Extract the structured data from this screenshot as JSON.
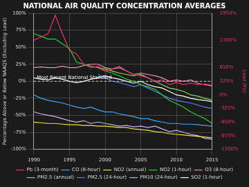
{
  "chart_data": {
    "type": "line",
    "title": "NATIONAL AIR QUALITY CONCENTRATION AVERAGES",
    "y_label": "Percentage Above or Below NAAQS (Excluding Lead)",
    "y2_label": "Lead (Pb)",
    "x": [
      1990,
      1991,
      1992,
      1993,
      1994,
      1995,
      1996,
      1997,
      1998,
      1999,
      2000,
      2001,
      2002,
      2003,
      2004,
      2005,
      2006,
      2007,
      2008,
      2009,
      2010,
      2011,
      2012,
      2013,
      2014,
      2015
    ],
    "xlim": [
      1990,
      2015
    ],
    "xticks": [
      1990,
      1995,
      2000,
      2005,
      2010,
      2015
    ],
    "ylim": [
      -100,
      100
    ],
    "yticks": [
      {
        "value": -100,
        "label": "-100%"
      },
      {
        "value": -75,
        "label": "-75%"
      },
      {
        "value": -50,
        "label": "-50%"
      },
      {
        "value": -25,
        "label": "-25%"
      },
      {
        "value": 0,
        "label": "0%"
      },
      {
        "value": 25,
        "label": "25%"
      },
      {
        "value": 50,
        "label": "50%"
      },
      {
        "value": 75,
        "label": "75%"
      },
      {
        "value": 100,
        "label": "100%"
      }
    ],
    "y2lim": [
      -1300,
      1950
    ],
    "y2ticks": [
      {
        "value": -1300,
        "label": "-1300%"
      },
      {
        "value": -975,
        "label": "-975%"
      },
      {
        "value": -650,
        "label": "-650%"
      },
      {
        "value": -325,
        "label": "-325%"
      },
      {
        "value": 0,
        "label": "0%"
      },
      {
        "value": 325,
        "label": "325%"
      },
      {
        "value": 650,
        "label": "650%"
      },
      {
        "value": 1300,
        "label": "1300%"
      },
      {
        "value": 1950,
        "label": "1950%"
      }
    ],
    "grid": true,
    "legend": "bottom",
    "annotations": [
      {
        "text": "Most Recent National Standard",
        "y": 0
      }
    ],
    "series": [
      {
        "name": "Pb (3-month)",
        "color": "#e8336e",
        "axis": "y2",
        "values": [
          1300,
          1381,
          1463,
          1901,
          1463,
          1056,
          975,
          731,
          650,
          683,
          569,
          618,
          683,
          569,
          488,
          455,
          406,
          325,
          358,
          244,
          293,
          244,
          276,
          244,
          260,
          228
        ]
      },
      {
        "name": "CO (8-hour)",
        "color": "#3fa9f5",
        "values": [
          -20,
          -25,
          -28,
          -30,
          -32,
          -35,
          -38,
          -40,
          -38,
          -42,
          -45,
          -45,
          -48,
          -50,
          -52,
          -55,
          -55,
          -58,
          -60,
          -62,
          -62,
          -63,
          -63,
          -64,
          -65,
          -66
        ]
      },
      {
        "name": "NO2 (annual)",
        "color": "#f0e442",
        "values": [
          -60,
          -61,
          -62,
          -62,
          -63,
          -64,
          -64,
          -65,
          -65,
          -66,
          -66,
          -67,
          -68,
          -68,
          -70,
          -71,
          -72,
          -74,
          -75,
          -77,
          -78,
          -79,
          -80,
          -81,
          -82,
          -83
        ]
      },
      {
        "name": "NO2 (1-hour)",
        "color": "#33cc33",
        "values": [
          70,
          66,
          62,
          62,
          55,
          48,
          28,
          25,
          22,
          20,
          15,
          12,
          8,
          3,
          0,
          -5,
          -8,
          -12,
          -20,
          -28,
          -33,
          -38,
          -45,
          -50,
          -55,
          -62
        ]
      },
      {
        "name": "O3 (8-hour)",
        "color": "#f08cb0",
        "values": [
          20,
          21,
          20,
          20,
          22,
          20,
          20,
          23,
          25,
          25,
          20,
          18,
          20,
          15,
          10,
          12,
          10,
          8,
          5,
          0,
          2,
          0,
          2,
          -3,
          -5,
          -7
        ]
      },
      {
        "name": "PM2.5 (annual)",
        "color": "#88dd55",
        "values": [
          null,
          null,
          null,
          null,
          null,
          null,
          null,
          null,
          null,
          20,
          18,
          15,
          12,
          10,
          8,
          10,
          5,
          0,
          -5,
          -10,
          -12,
          -15,
          -20,
          -22,
          -25,
          -28
        ]
      },
      {
        "name": "PM2.5 (24-hour)",
        "color": "#5b7cfa",
        "values": [
          null,
          null,
          null,
          null,
          null,
          null,
          null,
          null,
          null,
          10,
          5,
          0,
          -2,
          -5,
          -8,
          -5,
          -10,
          -15,
          -20,
          -25,
          -28,
          -30,
          -32,
          -35,
          -38,
          -40
        ]
      },
      {
        "name": "PM10 (24-hour)",
        "color": "#c9b3f0",
        "values": [
          -45,
          -48,
          -50,
          -52,
          -55,
          -58,
          -60,
          -58,
          -62,
          -60,
          -62,
          -64,
          -66,
          -65,
          -67,
          -66,
          -68,
          -66,
          -70,
          -74,
          -72,
          -75,
          -78,
          -80,
          -84,
          -85
        ]
      },
      {
        "name": "SO2 (1-hour)",
        "color": "#ffffff",
        "values": [
          5,
          3,
          2,
          5,
          3,
          0,
          -2,
          0,
          3,
          5,
          8,
          5,
          3,
          0,
          -3,
          0,
          -5,
          -8,
          -10,
          -15,
          -20,
          -22,
          -25,
          -27,
          -28,
          -30
        ]
      }
    ]
  }
}
